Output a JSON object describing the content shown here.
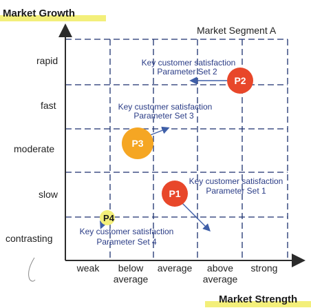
{
  "y_axis_title": "Market Growth",
  "x_axis_title": "Market Strength",
  "segment_title": "Market Segment A",
  "y_levels": [
    "rapid",
    "fast",
    "moderate",
    "slow",
    "contrasting"
  ],
  "x_levels": [
    [
      "weak"
    ],
    [
      "below",
      "average"
    ],
    [
      "average"
    ],
    [
      "above",
      "average"
    ],
    [
      "strong"
    ]
  ],
  "bubbles": [
    {
      "label": "P1",
      "color": "#e8472a"
    },
    {
      "label": "P2",
      "color": "#e8472a"
    },
    {
      "label": "P3",
      "color": "#f5a623"
    },
    {
      "label": "P4",
      "color": "#f3ef7a"
    }
  ],
  "annotations": [
    {
      "line1": "Key customer satisfaction",
      "line2": "Parameter Set 1"
    },
    {
      "line1": "Key customer satisfaction",
      "line2": "Parameter Set 2"
    },
    {
      "line1": "Key customer satisfaction",
      "line2": "Parameter Set 3"
    },
    {
      "line1": "Key customer satisfaction",
      "line2": "Parameter Set 4"
    }
  ],
  "colors": {
    "grid": "#1a2f6e",
    "axis": "#2b2b2b",
    "text_blue": "#2a3c86",
    "arrow": "#3f5fa8",
    "title_underline": "#f3ef7a"
  }
}
